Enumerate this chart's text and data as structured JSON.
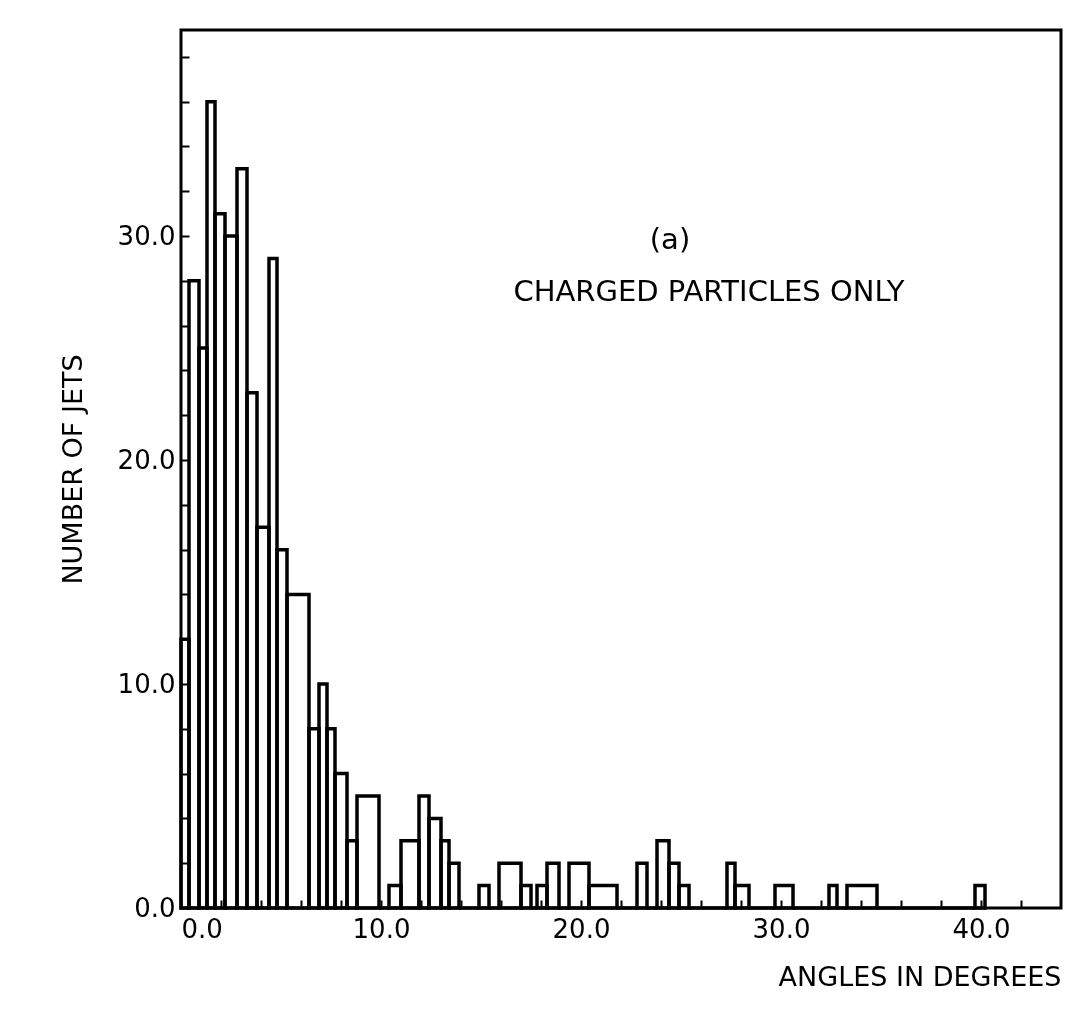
{
  "chart_data": {
    "type": "histogram",
    "xlabel": "ANGLES IN DEGREES",
    "ylabel": "NUMBER OF JETS",
    "annotations": [
      "(a)",
      "CHARGED PARTICLES ONLY"
    ],
    "bins": [
      0,
      0.4,
      0.9,
      1.3,
      1.7,
      2.2,
      2.8,
      3.3,
      3.8,
      4.4,
      4.8,
      5.3,
      6.4,
      6.9,
      7.3,
      7.7,
      8.3,
      8.8,
      9.9,
      10.4,
      11.0,
      11.9,
      12.4,
      13.0,
      13.4,
      13.9,
      14.9,
      15.4,
      15.9,
      17.0,
      17.5,
      17.8,
      18.3,
      18.9,
      19.4,
      20.4,
      21.8,
      22.8,
      23.3,
      23.8,
      24.4,
      24.9,
      25.4,
      27.3,
      27.7,
      28.4,
      29.7,
      30.6,
      32.4,
      32.8,
      33.3,
      34.8,
      39.7,
      40.2
    ],
    "values": [
      12,
      28,
      25,
      36,
      31,
      30,
      33,
      23,
      17,
      29,
      16,
      14,
      8,
      10,
      8,
      6,
      3,
      5,
      0,
      1,
      3,
      5,
      4,
      3,
      2,
      0,
      1,
      0,
      2,
      1,
      0,
      1,
      2,
      0,
      2,
      1,
      0,
      2,
      0,
      3,
      2,
      1,
      0,
      2,
      1,
      0,
      1,
      0,
      1,
      0,
      1,
      0,
      1
    ],
    "color": "#000000",
    "xlim": [
      0,
      44
    ],
    "xticks": [
      {
        "value": 0,
        "label": "0.0"
      },
      {
        "value": 2,
        "label": null
      },
      {
        "value": 4,
        "label": null
      },
      {
        "value": 6,
        "label": null
      },
      {
        "value": 8,
        "label": null
      },
      {
        "value": 10,
        "label": "10.0"
      },
      {
        "value": 12,
        "label": null
      },
      {
        "value": 14,
        "label": null
      },
      {
        "value": 16,
        "label": null
      },
      {
        "value": 18,
        "label": null
      },
      {
        "value": 20,
        "label": "20.0"
      },
      {
        "value": 22,
        "label": null
      },
      {
        "value": 24,
        "label": null
      },
      {
        "value": 26,
        "label": null
      },
      {
        "value": 28,
        "label": null
      },
      {
        "value": 30,
        "label": "30.0"
      },
      {
        "value": 32,
        "label": null
      },
      {
        "value": 34,
        "label": null
      },
      {
        "value": 36,
        "label": null
      },
      {
        "value": 38,
        "label": null
      },
      {
        "value": 40,
        "label": "40.0"
      },
      {
        "value": 42,
        "label": null
      }
    ],
    "ylim": [
      0,
      39.2
    ],
    "yticks": [
      {
        "value": 0,
        "label": "0.0"
      },
      {
        "value": 2,
        "label": null
      },
      {
        "value": 4,
        "label": null
      },
      {
        "value": 6,
        "label": null
      },
      {
        "value": 8,
        "label": null
      },
      {
        "value": 10,
        "label": "10.0"
      },
      {
        "value": 12,
        "label": null
      },
      {
        "value": 14,
        "label": null
      },
      {
        "value": 16,
        "label": null
      },
      {
        "value": 18,
        "label": null
      },
      {
        "value": 20,
        "label": "20.0"
      },
      {
        "value": 22,
        "label": null
      },
      {
        "value": 24,
        "label": null
      },
      {
        "value": 26,
        "label": null
      },
      {
        "value": 28,
        "label": null
      },
      {
        "value": 30,
        "label": "30.0"
      },
      {
        "value": 32,
        "label": null
      },
      {
        "value": 34,
        "label": null
      },
      {
        "value": 36,
        "label": null
      },
      {
        "value": 38,
        "label": null
      }
    ],
    "grid": false
  }
}
